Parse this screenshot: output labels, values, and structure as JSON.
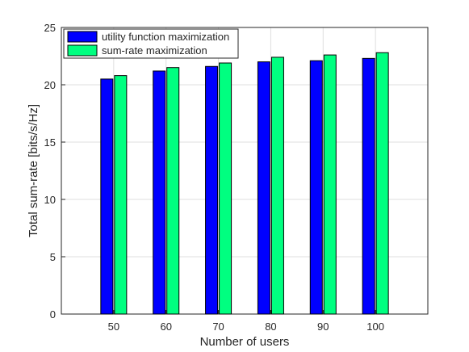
{
  "chart_data": {
    "type": "bar",
    "title": "",
    "xlabel": "Number of users",
    "ylabel": "Total sum-rate [bits/s/Hz]",
    "categories": [
      "50",
      "60",
      "70",
      "80",
      "90",
      "100"
    ],
    "ylim": [
      0,
      25
    ],
    "yticks": [
      "0",
      "5",
      "10",
      "15",
      "20",
      "25"
    ],
    "grid": true,
    "legend_position": "top-left",
    "series": [
      {
        "name": "utility function maximization",
        "color": "#0000ff",
        "values": [
          20.5,
          21.2,
          21.6,
          22.0,
          22.1,
          22.3
        ]
      },
      {
        "name": "sum-rate maximization",
        "color": "#00ff80",
        "values": [
          20.8,
          21.5,
          21.9,
          22.4,
          22.6,
          22.8
        ]
      }
    ]
  }
}
